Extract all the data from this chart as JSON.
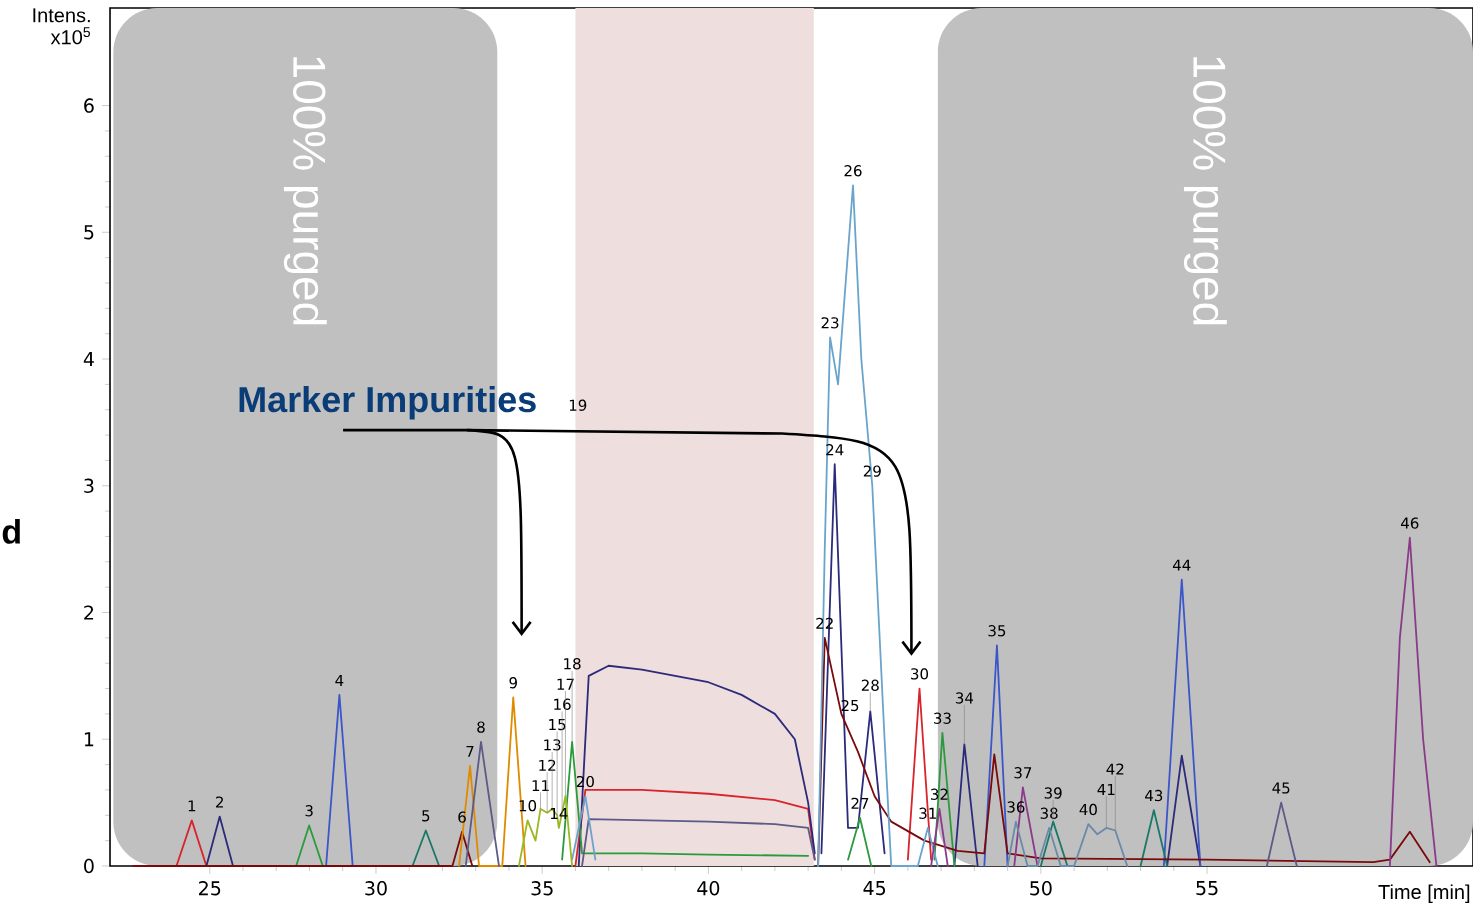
{
  "chart_data": {
    "type": "line",
    "xlabel": "Time [min]",
    "ylabel": "Intens. x10$^{5}$",
    "xlim": [
      22,
      63
    ],
    "ylim": [
      0,
      6.77
    ],
    "xticks": [
      25,
      30,
      35,
      40,
      45,
      50,
      55
    ],
    "yticks": [
      0,
      1,
      2,
      3,
      4,
      5,
      6
    ],
    "bands": [
      {
        "axis": "x",
        "from": 22.1,
        "to": 33.65,
        "label": "100% purged",
        "color": "#c0c0c0"
      },
      {
        "axis": "x",
        "from": 36.0,
        "to": 43.17,
        "color": "#eedede"
      },
      {
        "axis": "x",
        "from": 46.9,
        "to": 63.0,
        "label": "100% purged",
        "color": "#c0c0c0"
      }
    ],
    "series": [
      {
        "color": "#d8242c",
        "x": [
          24.0,
          24.46,
          24.9,
          30,
          36.0,
          36.3,
          38,
          40,
          42,
          43,
          43.2,
          44.5,
          46.0,
          46.35,
          46.7
        ],
        "values": [
          0,
          0.36,
          0,
          null,
          0,
          0.6,
          0.6,
          0.57,
          0.52,
          0.45,
          0.05,
          null,
          0.05,
          1.4,
          0.05
        ]
      },
      {
        "color": "#2c2a7a",
        "x": [
          24.9,
          25.3,
          25.7,
          30,
          36.1,
          36.4,
          37,
          38,
          39,
          40,
          41,
          42,
          42.6,
          43.0,
          43.2,
          43.3,
          43.4,
          43.8,
          44.2,
          44.5,
          44.87,
          45.3,
          46.5,
          47.4,
          47.7,
          48.1,
          51,
          53.8,
          54.24,
          54.8
        ],
        "values": [
          0,
          0.39,
          0,
          null,
          0,
          1.5,
          1.58,
          1.55,
          1.5,
          1.45,
          1.35,
          1.2,
          1.0,
          0.5,
          0.1,
          null,
          0.1,
          3.17,
          0.3,
          0.3,
          1.22,
          0.1,
          null,
          0,
          0.96,
          0,
          null,
          0,
          0.87,
          0
        ]
      },
      {
        "color": "#2a9a3c",
        "x": [
          27.6,
          27.99,
          28.4,
          30,
          35.6,
          35.9,
          36.2,
          38,
          40,
          43,
          43.6,
          44.2,
          44.56,
          44.9,
          46,
          46.8,
          47.04,
          47.4
        ],
        "values": [
          0,
          0.32,
          0,
          null,
          0.05,
          0.98,
          0.1,
          0.1,
          0.09,
          0.08,
          null,
          0.05,
          0.38,
          0,
          null,
          0.05,
          1.05,
          0
        ]
      },
      {
        "color": "#3a56c8",
        "x": [
          28.5,
          28.9,
          29.3,
          40,
          48.3,
          48.68,
          49.0,
          51,
          53.7,
          54.24,
          54.8
        ],
        "values": [
          0,
          1.35,
          0,
          null,
          0,
          1.74,
          0,
          null,
          0,
          2.26,
          0
        ]
      },
      {
        "color": "#1a7868",
        "x": [
          31.1,
          31.5,
          31.9,
          40,
          50.0,
          50.37,
          50.8,
          52,
          53.0,
          53.4,
          53.8
        ],
        "values": [
          0,
          0.28,
          0,
          null,
          0,
          0.35,
          0,
          null,
          0,
          0.44,
          0
        ]
      },
      {
        "color": "#7a0a0a",
        "x": [
          22.7,
          32.3,
          32.59,
          32.9,
          38,
          43.3,
          43.5,
          44,
          44.5,
          45,
          45.5,
          46.5,
          47.5,
          48.3,
          48.6,
          49.0,
          50,
          55,
          60,
          60.5,
          61.1,
          61.7
        ],
        "values": [
          0,
          0,
          0.27,
          0,
          null,
          0,
          1.8,
          1.2,
          0.9,
          0.55,
          0.35,
          0.2,
          0.12,
          0.1,
          0.88,
          0.1,
          0.06,
          0.05,
          0.03,
          0.05,
          0.27,
          0.03
        ]
      },
      {
        "color": "#e08a00",
        "x": [
          32.5,
          32.83,
          33.1,
          33.8,
          34.13,
          34.5
        ],
        "values": [
          0,
          0.79,
          0,
          0,
          1.33,
          0
        ]
      },
      {
        "color": "#5c5a86",
        "x": [
          32.7,
          33.16,
          33.7,
          35,
          36.2,
          36.4,
          40,
          42,
          43,
          43.2,
          50,
          56.8,
          57.23,
          57.7
        ],
        "values": [
          0,
          0.98,
          0,
          null,
          0,
          0.37,
          0.35,
          0.33,
          0.3,
          0.05,
          null,
          0,
          0.5,
          0
        ]
      },
      {
        "color": "#6aa4cc",
        "x": [
          35.9,
          36.3,
          36.6,
          40,
          43.3,
          43.5,
          43.66,
          43.9,
          44.1,
          44.35,
          44.6,
          44.93,
          45.3,
          45.5,
          46.3,
          46.6,
          46.9
        ],
        "values": [
          0.05,
          0.55,
          0.05,
          null,
          0,
          2.5,
          4.17,
          3.8,
          4.5,
          5.37,
          4.0,
          3.0,
          1.0,
          0,
          0,
          0.3,
          0
        ]
      },
      {
        "color": "#8a3a8a",
        "x": [
          46.7,
          46.95,
          47.2,
          48,
          49.2,
          49.46,
          49.9,
          55,
          60.5,
          60.8,
          61.1,
          61.5,
          61.9
        ],
        "values": [
          0,
          0.45,
          0,
          null,
          0,
          0.62,
          0,
          null,
          0,
          1.8,
          2.59,
          1.0,
          0
        ]
      },
      {
        "color": "#6a8aa8",
        "x": [
          49.0,
          49.25,
          49.6,
          49.9,
          50.25,
          50.6,
          51.0,
          51.43,
          51.7,
          51.97,
          52.24,
          52.6
        ],
        "values": [
          0,
          0.35,
          0,
          0,
          0.3,
          0,
          0,
          0.33,
          0.25,
          0.3,
          0.28,
          0
        ]
      },
      {
        "color": "#9ab820",
        "x": [
          34.3,
          34.56,
          34.8,
          34.95,
          35.15,
          35.3,
          35.45,
          35.5,
          35.6,
          35.7,
          35.9
        ],
        "values": [
          0,
          0.36,
          0.2,
          0.45,
          0.42,
          0.45,
          0.4,
          0.3,
          0.42,
          0.55,
          0
        ]
      }
    ],
    "annotations": [
      "Marker Impurities",
      "d",
      {
        "text": "1",
        "x": 24.46,
        "y": 0.36
      },
      {
        "text": "2",
        "x": 25.3,
        "y": 0.39
      },
      {
        "text": "3",
        "x": 27.99,
        "y": 0.32
      },
      {
        "text": "4",
        "x": 28.9,
        "y": 1.35
      },
      {
        "text": "5",
        "x": 31.5,
        "y": 0.28
      },
      {
        "text": "6",
        "x": 32.59,
        "y": 0.27
      },
      {
        "text": "7",
        "x": 32.83,
        "y": 0.79
      },
      {
        "text": "8",
        "x": 33.16,
        "y": 0.98
      },
      {
        "text": "9",
        "x": 34.13,
        "y": 1.33
      },
      {
        "text": "10",
        "x": 34.56,
        "y": 0.36
      },
      {
        "text": "11",
        "x": 34.95,
        "y": 0.45
      },
      {
        "text": "12",
        "x": 35.15,
        "y": 0.42
      },
      {
        "text": "13",
        "x": 35.3,
        "y": 0.45
      },
      {
        "text": "14",
        "x": 35.5,
        "y": 0.3
      },
      {
        "text": "15",
        "x": 35.45,
        "y": 0.4
      },
      {
        "text": "16",
        "x": 35.6,
        "y": 0.42
      },
      {
        "text": "17",
        "x": 35.7,
        "y": 0.55
      },
      {
        "text": "18",
        "x": 35.9,
        "y": 0.98
      },
      {
        "text": "19",
        "x": 36.07,
        "y": 3.52
      },
      {
        "text": "20",
        "x": 36.3,
        "y": 0.55
      },
      {
        "text": "22",
        "x": 43.5,
        "y": 1.8
      },
      {
        "text": "23",
        "x": 43.66,
        "y": 4.17
      },
      {
        "text": "24",
        "x": 43.8,
        "y": 3.17
      },
      {
        "text": "25",
        "x": 44.26,
        "y": 1.15
      },
      {
        "text": "26",
        "x": 44.35,
        "y": 5.37
      },
      {
        "text": "27",
        "x": 44.56,
        "y": 0.38
      },
      {
        "text": "28",
        "x": 44.87,
        "y": 1.22
      },
      {
        "text": "29",
        "x": 44.93,
        "y": 3.0
      },
      {
        "text": "30",
        "x": 46.35,
        "y": 1.4
      },
      {
        "text": "31",
        "x": 46.6,
        "y": 0.3
      },
      {
        "text": "32",
        "x": 46.95,
        "y": 0.45
      },
      {
        "text": "33",
        "x": 47.04,
        "y": 1.05
      },
      {
        "text": "34",
        "x": 47.7,
        "y": 0.96
      },
      {
        "text": "35",
        "x": 48.68,
        "y": 1.74
      },
      {
        "text": "36",
        "x": 49.25,
        "y": 0.35
      },
      {
        "text": "37",
        "x": 49.46,
        "y": 0.62
      },
      {
        "text": "38",
        "x": 50.25,
        "y": 0.3
      },
      {
        "text": "39",
        "x": 50.37,
        "y": 0.35
      },
      {
        "text": "40",
        "x": 51.43,
        "y": 0.33
      },
      {
        "text": "41",
        "x": 51.97,
        "y": 0.3
      },
      {
        "text": "42",
        "x": 52.24,
        "y": 0.28
      },
      {
        "text": "43",
        "x": 53.4,
        "y": 0.44
      },
      {
        "text": "44",
        "x": 54.24,
        "y": 2.26
      },
      {
        "text": "45",
        "x": 57.23,
        "y": 0.5
      },
      {
        "text": "46",
        "x": 61.1,
        "y": 2.59
      }
    ]
  }
}
